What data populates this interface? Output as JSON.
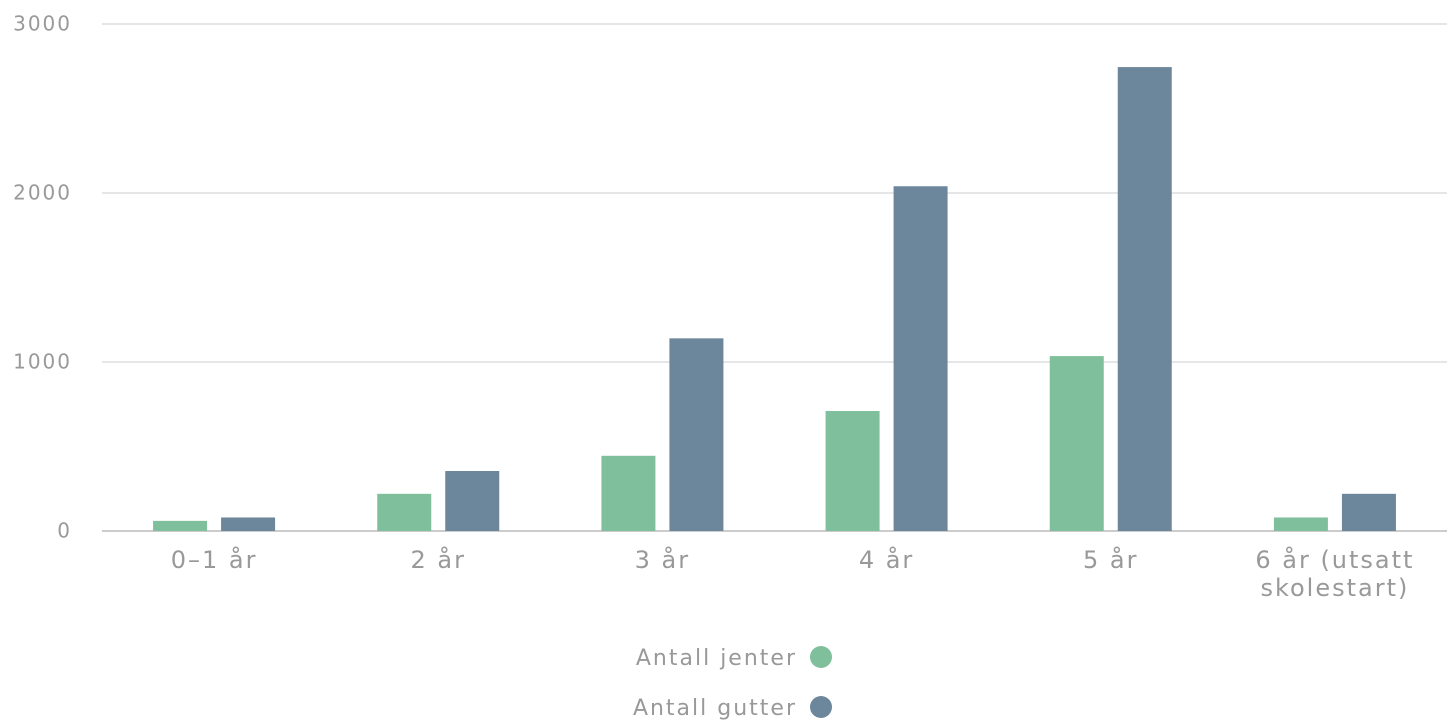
{
  "chart_data": {
    "type": "bar",
    "categories": [
      "0–1 år",
      "2 år",
      "3 år",
      "4 år",
      "5 år",
      "6 år (utsatt skolestart)"
    ],
    "series": [
      {
        "name": "Antall jenter",
        "color": "#7fbf9c",
        "values": [
          60,
          220,
          445,
          710,
          1035,
          80
        ]
      },
      {
        "name": "Antall gutter",
        "color": "#6c869c",
        "values": [
          80,
          355,
          1140,
          2040,
          2745,
          220
        ]
      }
    ],
    "ylim": [
      0,
      3000
    ],
    "yticks": [
      0,
      1000,
      2000,
      3000
    ],
    "grid": true
  }
}
